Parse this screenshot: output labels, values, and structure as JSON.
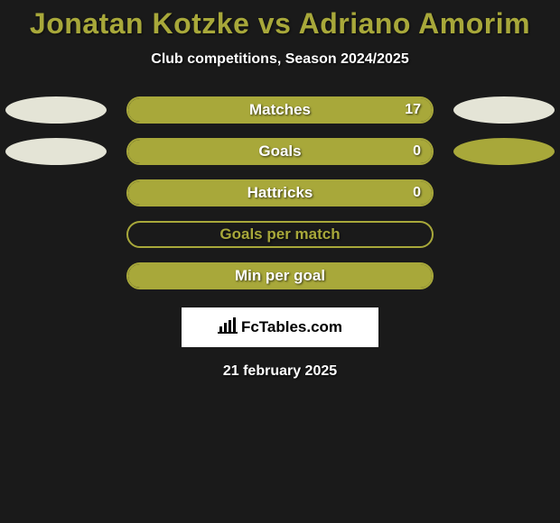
{
  "title": "Jonatan Kotzke vs Adriano Amorim",
  "subtitle": "Club competitions, Season 2024/2025",
  "date": "21 february 2025",
  "logo_text": "FcTables.com",
  "colors": {
    "background": "#1a1a1a",
    "accent": "#a8a83a",
    "ellipse_light": "#e4e4d6",
    "title_color": "#a8a83a",
    "text_color": "#ffffff",
    "bar_fill": "#a8a83a",
    "bar_border": "#a8a83a"
  },
  "typography": {
    "title_fontsize": 32,
    "subtitle_fontsize": 16,
    "bar_label_fontsize": 17,
    "date_fontsize": 16
  },
  "rows": [
    {
      "label": "Matches",
      "value": "17",
      "fill_pct": 100,
      "left_ellipse_color": "#e4e4d6",
      "right_ellipse_color": "#e4e4d6",
      "show_ellipses": true,
      "show_value": true,
      "label_color": "#ffffff",
      "bar_border_color": "#a8a83a"
    },
    {
      "label": "Goals",
      "value": "0",
      "fill_pct": 100,
      "left_ellipse_color": "#e4e4d6",
      "right_ellipse_color": "#a8a83a",
      "show_ellipses": true,
      "show_value": true,
      "label_color": "#ffffff",
      "bar_border_color": "#a8a83a"
    },
    {
      "label": "Hattricks",
      "value": "0",
      "fill_pct": 100,
      "left_ellipse_color": "",
      "right_ellipse_color": "",
      "show_ellipses": false,
      "show_value": true,
      "label_color": "#ffffff",
      "bar_border_color": "#a8a83a"
    },
    {
      "label": "Goals per match",
      "value": "",
      "fill_pct": 0,
      "left_ellipse_color": "",
      "right_ellipse_color": "",
      "show_ellipses": false,
      "show_value": false,
      "label_color": "#a8a83a",
      "bar_border_color": "#a8a83a"
    },
    {
      "label": "Min per goal",
      "value": "",
      "fill_pct": 100,
      "left_ellipse_color": "",
      "right_ellipse_color": "",
      "show_ellipses": false,
      "show_value": false,
      "label_color": "#ffffff",
      "bar_border_color": "#a8a83a"
    }
  ]
}
